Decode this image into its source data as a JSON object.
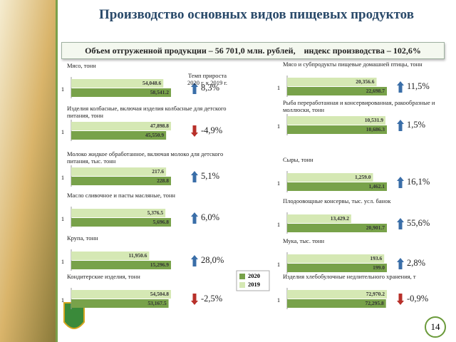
{
  "title": "Производство основных видов пищевых продуктов",
  "summary": "Объем отгруженной продукции – 56 701,0 млн. рублей,    индекс производства – 102,6%",
  "growth_header": "Темп прироста 2020 г. к 2019 г.",
  "legend": [
    {
      "name": "2020",
      "color": "#78a24a"
    },
    {
      "name": "2019",
      "color": "#d5e8b4"
    }
  ],
  "page_number": "14",
  "chart_data": [
    {
      "type": "bar",
      "title": "Мясо, тонн",
      "categories": [
        "1"
      ],
      "series": [
        {
          "values": [
            58541.2
          ],
          "value_labels": [
            "58,541.2"
          ]
        },
        {
          "values": [
            54048.6
          ],
          "value_labels": [
            "54,048.6"
          ]
        }
      ],
      "growth": {
        "value": 8.3,
        "label": "8,3%"
      }
    },
    {
      "type": "bar",
      "title": "Изделия колбасные, включая изделия колбасные для детского питания, тонн",
      "categories": [
        "1"
      ],
      "series": [
        {
          "values": [
            45550.9
          ],
          "value_labels": [
            "45,550.9"
          ]
        },
        {
          "values": [
            47898.8
          ],
          "value_labels": [
            "47,898.8"
          ]
        }
      ],
      "growth": {
        "value": -4.9,
        "label": "-4,9%"
      }
    },
    {
      "type": "bar",
      "title": "Молоко жидкое обработанное, включая молоко для детского питания, тыс. тонн",
      "categories": [
        "1"
      ],
      "series": [
        {
          "values": [
            228.8
          ],
          "value_labels": [
            "228.8"
          ]
        },
        {
          "values": [
            217.6
          ],
          "value_labels": [
            "217.6"
          ]
        }
      ],
      "growth": {
        "value": 5.1,
        "label": "5,1%"
      }
    },
    {
      "type": "bar",
      "title": "Масло сливочное и пасты масляные, тонн",
      "categories": [
        "1"
      ],
      "series": [
        {
          "values": [
            5696.8
          ],
          "value_labels": [
            "5,696.8"
          ]
        },
        {
          "values": [
            5376.5
          ],
          "value_labels": [
            "5,376.5"
          ]
        }
      ],
      "growth": {
        "value": 6.0,
        "label": "6,0%"
      }
    },
    {
      "type": "bar",
      "title": "Крупа, тонн",
      "categories": [
        "1"
      ],
      "series": [
        {
          "values": [
            15296.9
          ],
          "value_labels": [
            "15,296.9"
          ]
        },
        {
          "values": [
            11950.6
          ],
          "value_labels": [
            "11,950.6"
          ]
        }
      ],
      "growth": {
        "value": 28.0,
        "label": "28,0%"
      }
    },
    {
      "type": "bar",
      "title": "Кондитерские изделия, тонн",
      "categories": [
        "1"
      ],
      "series": [
        {
          "values": [
            53167.5
          ],
          "value_labels": [
            "53,167.5"
          ]
        },
        {
          "values": [
            54504.8
          ],
          "value_labels": [
            "54,504.8"
          ]
        }
      ],
      "growth": {
        "value": -2.5,
        "label": "-2,5%"
      }
    },
    {
      "type": "bar",
      "title": "Мясо и субпродукты пищевые домашней птицы, тонн",
      "categories": [
        "1"
      ],
      "series": [
        {
          "values": [
            22698.7
          ],
          "value_labels": [
            "22,698.7"
          ]
        },
        {
          "values": [
            20356.6
          ],
          "value_labels": [
            "20,356.6"
          ]
        }
      ],
      "growth": {
        "value": 11.5,
        "label": "11,5%"
      }
    },
    {
      "type": "bar",
      "title": "Рыба переработанная и консервированная, ракообразные и моллюски, тонн",
      "categories": [
        "1"
      ],
      "series": [
        {
          "values": [
            10686.3
          ],
          "value_labels": [
            "10,686.3"
          ]
        },
        {
          "values": [
            10531.9
          ],
          "value_labels": [
            "10,531.9"
          ]
        }
      ],
      "growth": {
        "value": 1.5,
        "label": "1,5%"
      }
    },
    {
      "type": "bar",
      "title": "Сыры, тонн",
      "categories": [
        "1"
      ],
      "series": [
        {
          "values": [
            1462.1
          ],
          "value_labels": [
            "1,462.1"
          ]
        },
        {
          "values": [
            1259.0
          ],
          "value_labels": [
            "1,259.0"
          ]
        }
      ],
      "growth": {
        "value": 16.1,
        "label": "16,1%"
      }
    },
    {
      "type": "bar",
      "title": "Плодоовощные консервы, тыс. усл. банок",
      "categories": [
        "1"
      ],
      "series": [
        {
          "values": [
            20901.7
          ],
          "value_labels": [
            "20,901.7"
          ]
        },
        {
          "values": [
            13429.2
          ],
          "value_labels": [
            "13,429.2"
          ]
        }
      ],
      "growth": {
        "value": 55.6,
        "label": "55,6%"
      }
    },
    {
      "type": "bar",
      "title": "Мука, тыс. тонн",
      "categories": [
        "1"
      ],
      "series": [
        {
          "values": [
            199.0
          ],
          "value_labels": [
            "199.0"
          ]
        },
        {
          "values": [
            193.6
          ],
          "value_labels": [
            "193.6"
          ]
        }
      ],
      "growth": {
        "value": 2.8,
        "label": "2,8%"
      }
    },
    {
      "type": "bar",
      "title": "Изделия хлебобулочные недлительного хранения, т",
      "categories": [
        "1"
      ],
      "series": [
        {
          "values": [
            72295.8
          ],
          "value_labels": [
            "72,295.8"
          ]
        },
        {
          "values": [
            72970.2
          ],
          "value_labels": [
            "72,970.2"
          ]
        }
      ],
      "growth": {
        "value": -0.9,
        "label": "-0,9%"
      }
    }
  ]
}
